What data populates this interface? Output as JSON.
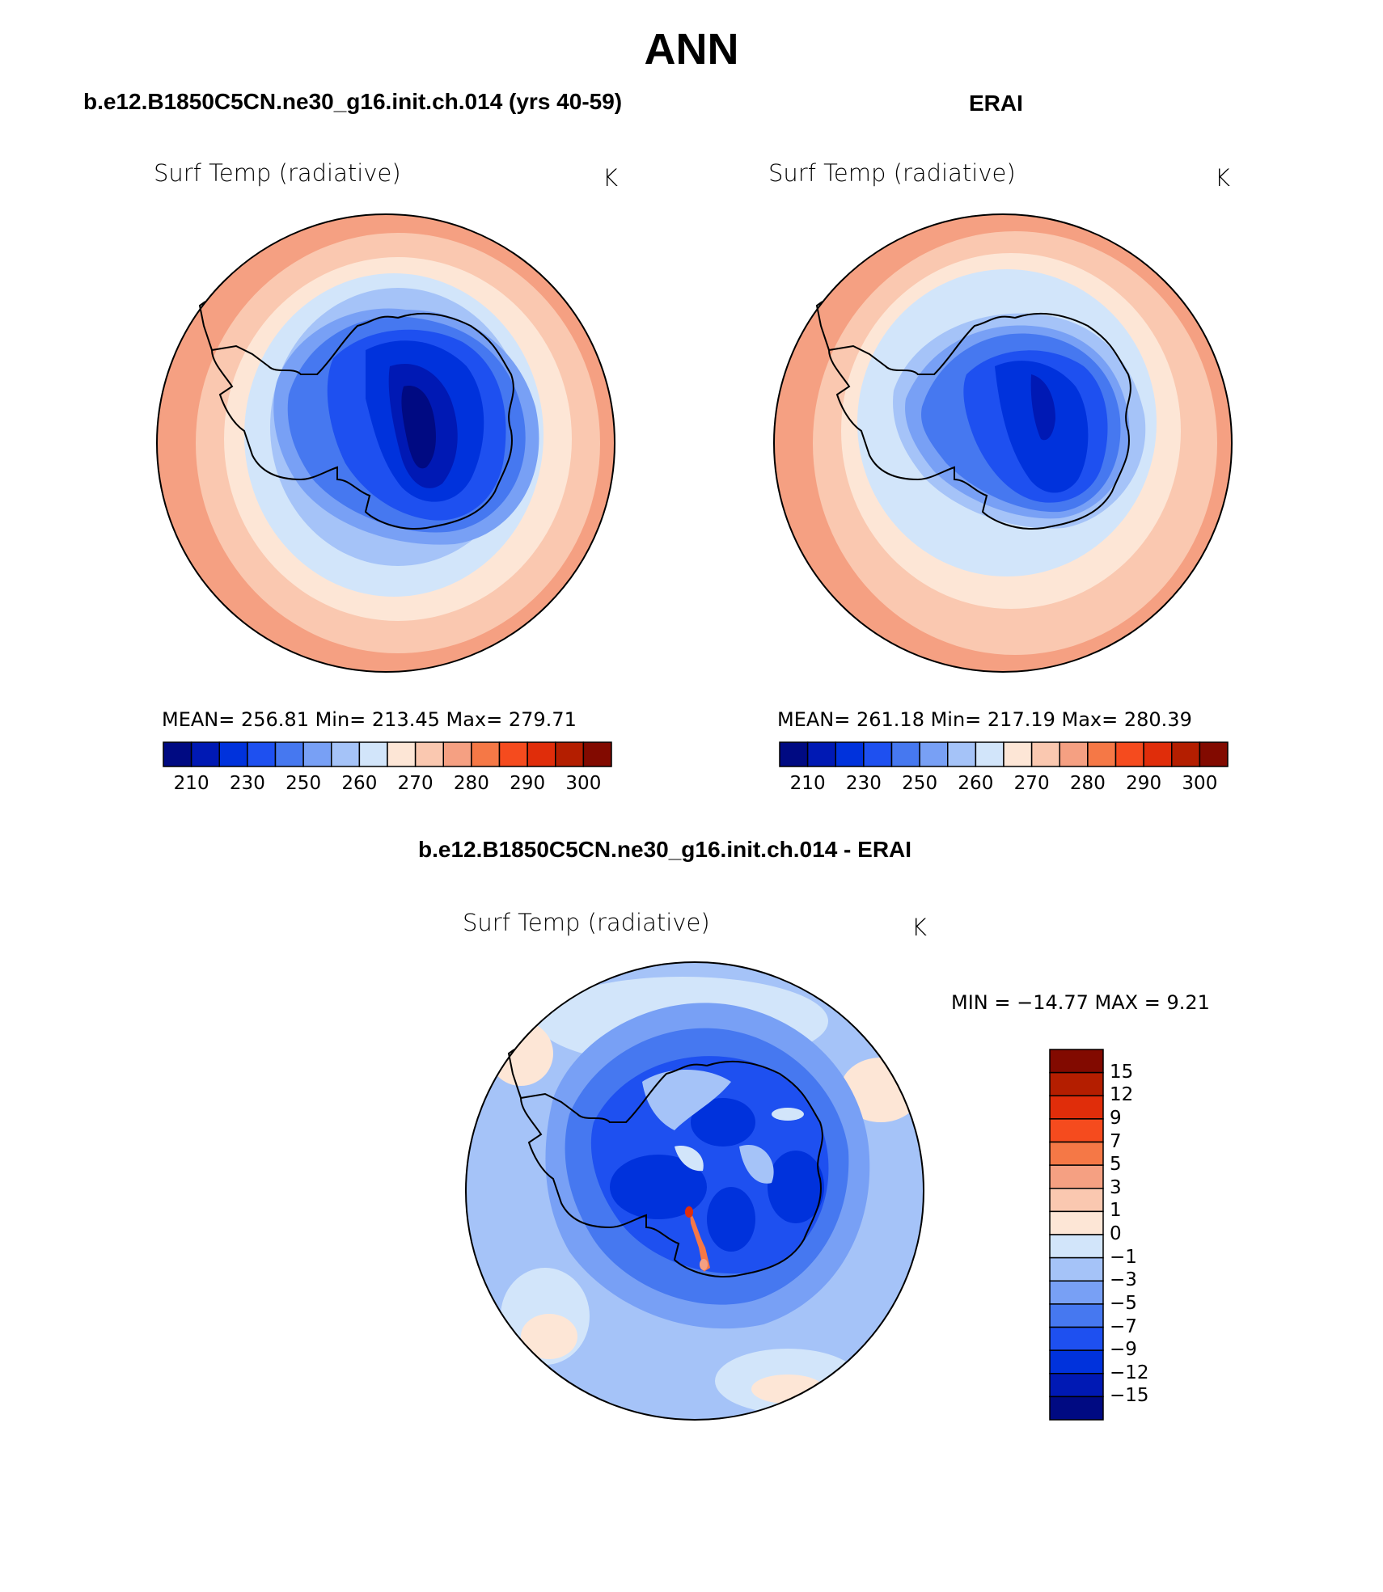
{
  "title": "ANN",
  "panels": [
    {
      "case_title": "b.e12.B1850C5CN.ne30_g16.init.ch.014 (yrs 40-59)",
      "variable": "Surf Temp (radiative)",
      "units": "K",
      "stats": "MEAN= 256.81   Min= 213.45   Max= 279.71"
    },
    {
      "case_title": "ERAI",
      "variable": "Surf Temp (radiative)",
      "units": "K",
      "stats": "MEAN= 261.18   Min= 217.19   Max= 280.39"
    },
    {
      "case_title": "b.e12.B1850C5CN.ne30_g16.init.ch.014 - ERAI",
      "variable": "Surf Temp (radiative)",
      "units": "K",
      "stats": "MIN = −14.77  MAX =    9.21"
    }
  ],
  "colorbar_abs": {
    "colors": [
      "#000a82",
      "#0019b4",
      "#0032dc",
      "#1e50f0",
      "#4678f0",
      "#78a0f5",
      "#a5c3f8",
      "#d2e5fa",
      "#fde6d6",
      "#fac8b0",
      "#f5a082",
      "#f57846",
      "#f54b1e",
      "#e02d0a",
      "#b41e00",
      "#820a00"
    ],
    "tick_labels": [
      "210",
      "230",
      "250",
      "260",
      "270",
      "280",
      "290",
      "300"
    ]
  },
  "colorbar_diff": {
    "colors": [
      "#000a82",
      "#0019b4",
      "#0032dc",
      "#1e50f0",
      "#4678f0",
      "#78a0f5",
      "#a5c3f8",
      "#d2e5fa",
      "#fde6d6",
      "#fac8b0",
      "#f5a082",
      "#f57846",
      "#f54b1e",
      "#e02d0a",
      "#b41e00",
      "#820a00"
    ],
    "tick_labels": [
      "15",
      "12",
      "9",
      "7",
      "5",
      "3",
      "1",
      "0",
      "−1",
      "−3",
      "−5",
      "−7",
      "−9",
      "−12",
      "−15"
    ]
  }
}
